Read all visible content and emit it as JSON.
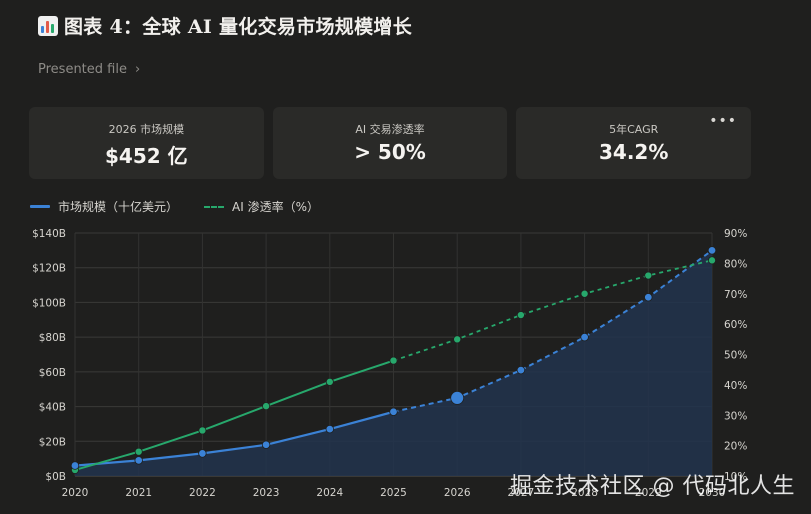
{
  "header": {
    "title": "图表 4：全球 AI 量化交易市场规模增长",
    "icon": "bar-chart-icon",
    "presented_label": "Presented file"
  },
  "kpis": [
    {
      "label": "2026 市场规模",
      "value": "$452 亿"
    },
    {
      "label": "AI 交易渗透率",
      "value": "> 50%"
    },
    {
      "label": "5年CAGR",
      "value": "34.2%"
    }
  ],
  "watermark": "掘金技术社区 @ 代码北人生",
  "colors": {
    "market": "#3b82d6",
    "penetration": "#27a86c",
    "area": "#22344d"
  },
  "chart_data": {
    "type": "line",
    "x": [
      "2020",
      "2021",
      "2022",
      "2023",
      "2024",
      "2025",
      "2026",
      "2027",
      "2028",
      "2029",
      "2030"
    ],
    "series": [
      {
        "name": "市场规模（十亿美元）",
        "axis": "left",
        "values": [
          6,
          9,
          13,
          18,
          27,
          37,
          45,
          61,
          80,
          103,
          130
        ],
        "actual_through": "2025",
        "highlight": "2026"
      },
      {
        "name": "AI 渗透率（%）",
        "axis": "right",
        "values": [
          12,
          18,
          25,
          33,
          41,
          48,
          55,
          63,
          70,
          76,
          81
        ],
        "actual_through": "2025"
      }
    ],
    "y_left": {
      "min": 0,
      "max": 140,
      "ticks": [
        "$0B",
        "$20B",
        "$40B",
        "$60B",
        "$80B",
        "$100B",
        "$120B",
        "$140B"
      ]
    },
    "y_right": {
      "min": 10,
      "max": 90,
      "ticks": [
        "10%",
        "20%",
        "30%",
        "40%",
        "50%",
        "60%",
        "70%",
        "80%",
        "90%"
      ]
    },
    "grid": true,
    "legend": "top-left"
  }
}
